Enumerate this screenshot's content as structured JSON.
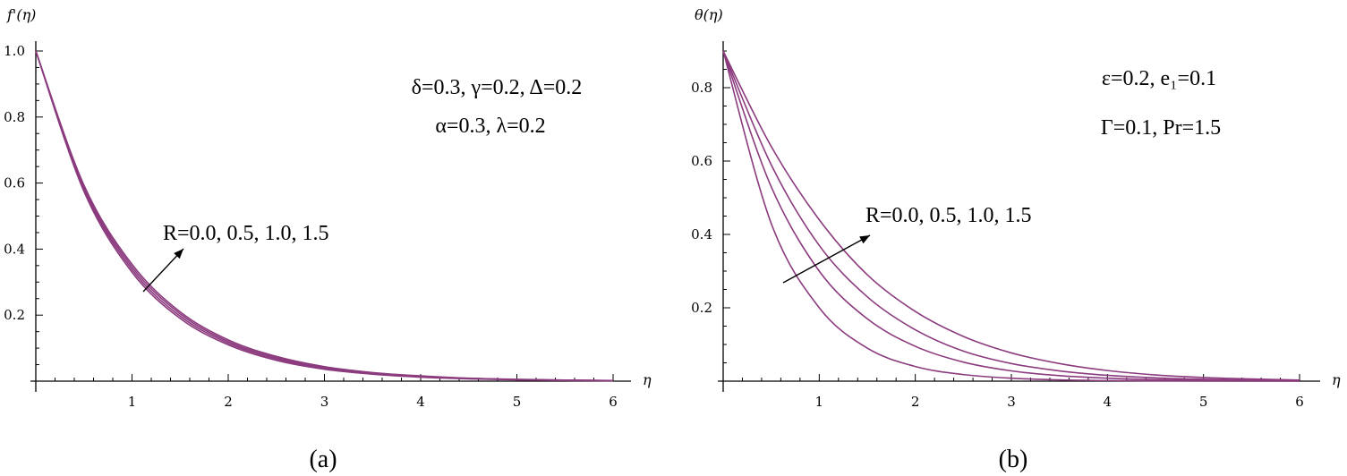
{
  "chart_data": [
    {
      "id": "a",
      "type": "line",
      "ylabel": "f'(η)",
      "xlabel": "η",
      "subcaption": "(a)",
      "xlim": [
        0,
        6
      ],
      "ylim": [
        0,
        1.05
      ],
      "xticks": [
        1,
        2,
        3,
        4,
        5,
        6
      ],
      "yticks": [
        0.2,
        0.4,
        0.6,
        0.8,
        1.0
      ],
      "ytick_labels": [
        "0.2",
        "0.4",
        "0.6",
        "0.8",
        "1.0"
      ],
      "annotations": [
        "δ=0.3,  γ=0.2,  Δ=0.2",
        "α=0.3,  λ=0.2",
        "R=0.0, 0.5, 1.0, 1.5"
      ],
      "series": [
        {
          "R": 0.0,
          "x": [
            0,
            0.5,
            1,
            1.5,
            2,
            2.5,
            3,
            3.5,
            4,
            4.5,
            5,
            5.5,
            6
          ],
          "y": [
            1.0,
            0.575,
            0.33,
            0.19,
            0.11,
            0.063,
            0.036,
            0.021,
            0.012,
            0.007,
            0.004,
            0.002,
            0.001
          ]
        },
        {
          "R": 0.5,
          "x": [
            0,
            0.5,
            1,
            1.5,
            2,
            2.5,
            3,
            3.5,
            4,
            4.5,
            5,
            5.5,
            6
          ],
          "y": [
            1.0,
            0.582,
            0.338,
            0.197,
            0.115,
            0.067,
            0.039,
            0.023,
            0.013,
            0.008,
            0.0045,
            0.0026,
            0.0015
          ]
        },
        {
          "R": 1.0,
          "x": [
            0,
            0.5,
            1,
            1.5,
            2,
            2.5,
            3,
            3.5,
            4,
            4.5,
            5,
            5.5,
            6
          ],
          "y": [
            1.0,
            0.588,
            0.346,
            0.204,
            0.12,
            0.071,
            0.041,
            0.024,
            0.014,
            0.0085,
            0.005,
            0.003,
            0.0017
          ]
        },
        {
          "R": 1.5,
          "x": [
            0,
            0.5,
            1,
            1.5,
            2,
            2.5,
            3,
            3.5,
            4,
            4.5,
            5,
            5.5,
            6
          ],
          "y": [
            1.0,
            0.594,
            0.354,
            0.21,
            0.125,
            0.075,
            0.044,
            0.026,
            0.016,
            0.009,
            0.0055,
            0.0033,
            0.002
          ]
        }
      ]
    },
    {
      "id": "b",
      "type": "line",
      "ylabel": "θ(η)",
      "xlabel": "η",
      "subcaption": "(b)",
      "xlim": [
        0,
        6
      ],
      "ylim": [
        0,
        0.9
      ],
      "xticks": [
        1,
        2,
        3,
        4,
        5,
        6
      ],
      "yticks": [
        0.2,
        0.4,
        0.6,
        0.8
      ],
      "ytick_labels": [
        "0.2",
        "0.4",
        "0.6",
        "0.8"
      ],
      "annotations": [
        "ε=0.2,  e₁=0.1",
        "Γ=0.1,  Pr=1.5",
        "R=0.0, 0.5, 1.0, 1.5"
      ],
      "series": [
        {
          "R": 0.0,
          "x": [
            0,
            0.5,
            1,
            1.5,
            2,
            2.5,
            3,
            3.5,
            4,
            4.5,
            5,
            5.5,
            6
          ],
          "y": [
            0.9,
            0.43,
            0.2,
            0.09,
            0.04,
            0.018,
            0.008,
            0.0035,
            0.0015,
            0.0007,
            0.0003,
            0.0001,
            0
          ]
        },
        {
          "R": 0.5,
          "x": [
            0,
            0.5,
            1,
            1.5,
            2,
            2.5,
            3,
            3.5,
            4,
            4.5,
            5,
            5.5,
            6
          ],
          "y": [
            0.9,
            0.53,
            0.3,
            0.17,
            0.095,
            0.052,
            0.028,
            0.015,
            0.008,
            0.004,
            0.002,
            0.001,
            0.0005
          ]
        },
        {
          "R": 1.0,
          "x": [
            0,
            0.5,
            1,
            1.5,
            2,
            2.5,
            3,
            3.5,
            4,
            4.5,
            5,
            5.5,
            6
          ],
          "y": [
            0.9,
            0.59,
            0.37,
            0.23,
            0.14,
            0.082,
            0.048,
            0.028,
            0.016,
            0.009,
            0.005,
            0.0027,
            0.0014
          ]
        },
        {
          "R": 1.5,
          "x": [
            0,
            0.5,
            1,
            1.5,
            2,
            2.5,
            3,
            3.5,
            4,
            4.5,
            5,
            5.5,
            6
          ],
          "y": [
            0.9,
            0.64,
            0.44,
            0.29,
            0.19,
            0.122,
            0.077,
            0.048,
            0.029,
            0.017,
            0.01,
            0.006,
            0.003
          ]
        }
      ]
    }
  ]
}
